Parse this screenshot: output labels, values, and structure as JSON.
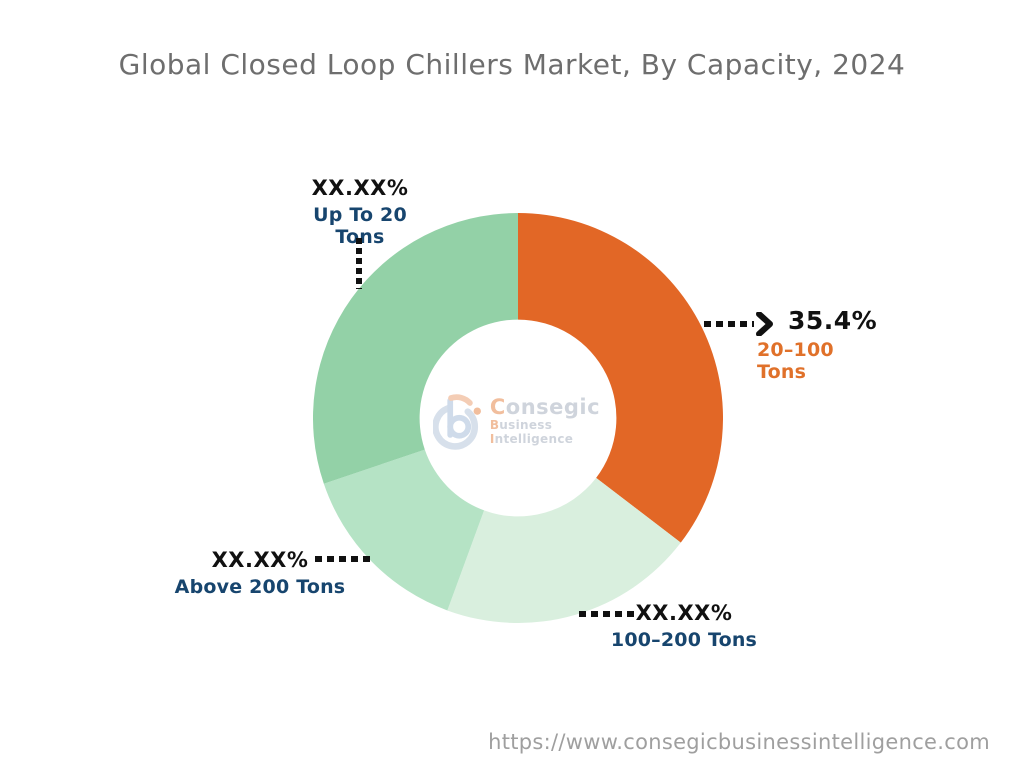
{
  "title": "Global Closed Loop Chillers Market, By Capacity, 2024",
  "footer_url": "https://www.consegicbusinessintelligence.com",
  "logo": {
    "name_initial": "C",
    "name_rest": "onsegic",
    "word1_initial": "B",
    "word1_rest": "usiness ",
    "word2_initial": "I",
    "word2_rest": "ntelligence"
  },
  "colors": {
    "segment_orange": "#E26726",
    "segment_green_medium": "#93D1A7",
    "segment_green_light": "#B5E3C5",
    "segment_green_pale": "#D9EFDE",
    "label_navy": "#17456E",
    "label_orange": "#E0712A",
    "title_gray": "#6E6E6E",
    "url_gray": "#9F9F9F",
    "connector_black": "#111111"
  },
  "chart_data": {
    "type": "pie",
    "subtype": "donut",
    "title": "Global Closed Loop Chillers Market, By Capacity, 2024",
    "legend_position": "none",
    "grid": false,
    "donut_hole_ratio": 0.48,
    "start_angle_deg": 0,
    "direction": "clockwise",
    "segments": [
      {
        "label": "20–100 Tons",
        "value_label": "35.4%",
        "value_pct_est": 35.4,
        "color": "#E26726"
      },
      {
        "label": "100–200 Tons",
        "value_label": "XX.XX%",
        "value_pct_est": 20.2,
        "color": "#D9EFDE"
      },
      {
        "label": "Above 200 Tons",
        "value_label": "XX.XX%",
        "value_pct_est": 14.2,
        "color": "#B5E3C5"
      },
      {
        "label": "Up To 20 Tons",
        "value_label": "XX.XX%",
        "value_pct_est": 30.2,
        "color": "#93D1A7"
      }
    ]
  }
}
